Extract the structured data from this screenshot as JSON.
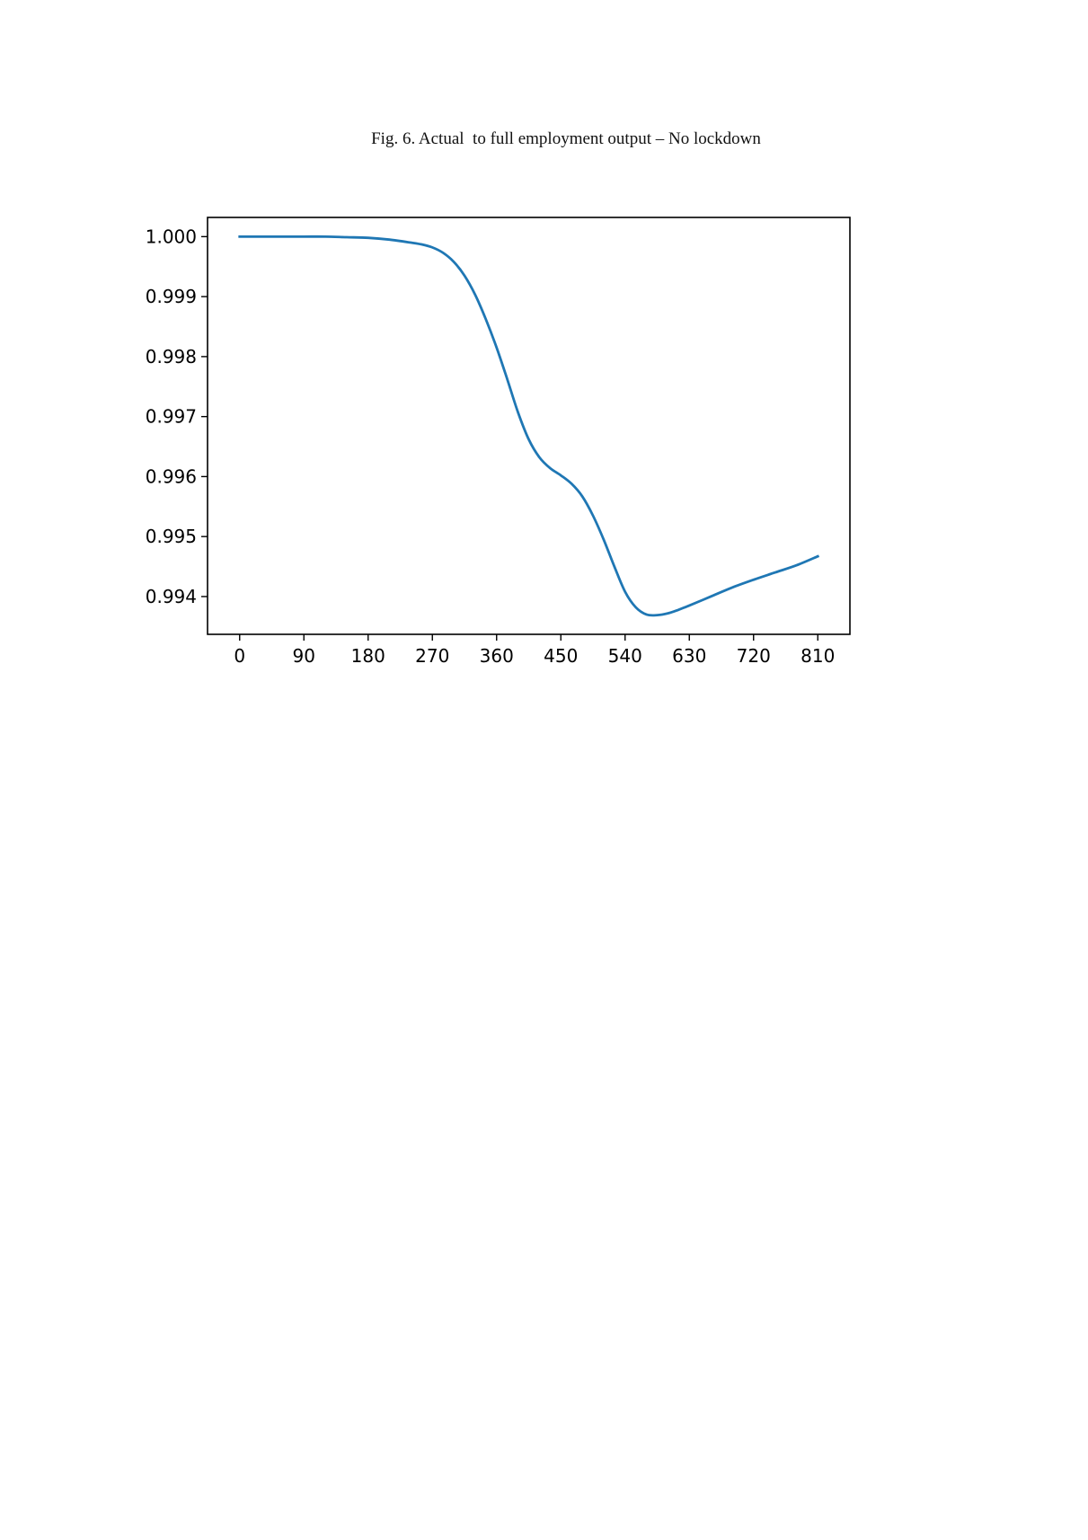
{
  "figure": {
    "caption": "Fig. 6. Actual  to full employment output – No lockdown"
  },
  "chart_data": {
    "type": "line",
    "title": "",
    "xlabel": "",
    "ylabel": "",
    "xlim": [
      -45,
      855
    ],
    "ylim": [
      0.99337,
      1.00032
    ],
    "xticks": [
      0,
      90,
      180,
      270,
      360,
      450,
      540,
      630,
      720,
      810
    ],
    "xtick_labels": [
      "0",
      "90",
      "180",
      "270",
      "360",
      "450",
      "540",
      "630",
      "720",
      "810"
    ],
    "yticks": [
      0.994,
      0.995,
      0.996,
      0.997,
      0.998,
      0.999,
      1.0
    ],
    "ytick_labels": [
      "0.994",
      "0.995",
      "0.996",
      "0.997",
      "0.998",
      "0.999",
      "1.000"
    ],
    "grid": false,
    "legend": "none",
    "line_color": "#1f77b4",
    "series": [
      {
        "x": [
          0,
          30,
          60,
          90,
          120,
          150,
          180,
          210,
          240,
          255,
          270,
          285,
          300,
          315,
          330,
          345,
          360,
          375,
          390,
          405,
          420,
          435,
          450,
          465,
          480,
          495,
          510,
          525,
          540,
          555,
          570,
          585,
          600,
          615,
          630,
          660,
          690,
          720,
          750,
          780,
          810
        ],
        "y": [
          1.0,
          1.0,
          1.0,
          1.0,
          1.0,
          0.99999,
          0.99998,
          0.99995,
          0.9999,
          0.99987,
          0.99982,
          0.99973,
          0.99958,
          0.99935,
          0.99903,
          0.99862,
          0.99815,
          0.99762,
          0.99707,
          0.99662,
          0.99632,
          0.99614,
          0.99602,
          0.99588,
          0.99567,
          0.99535,
          0.99495,
          0.9945,
          0.99408,
          0.99382,
          0.9937,
          0.99369,
          0.99372,
          0.99378,
          0.99385,
          0.994,
          0.99415,
          0.99428,
          0.9944,
          0.99452,
          0.99467
        ]
      }
    ]
  }
}
